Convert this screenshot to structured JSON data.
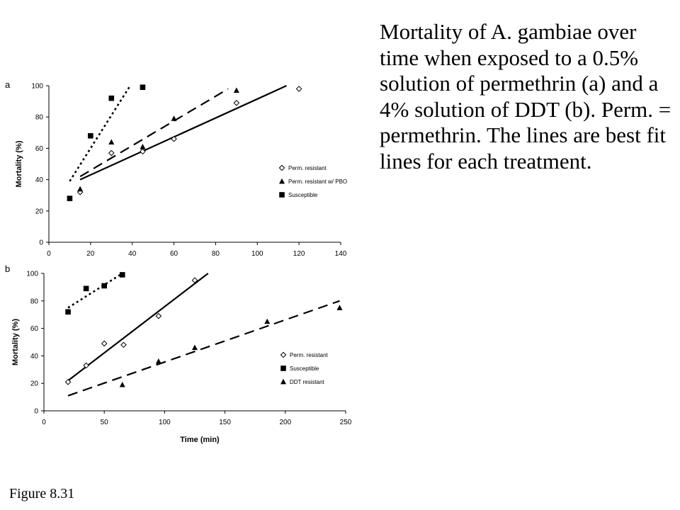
{
  "caption": "Mortality of A. gambiae over time when exposed to a 0.5% solution of permethrin (a) and a 4% solution of DDT (b).  Perm. = permethrin.  The lines are best fit lines for each treatment.",
  "figure_label": "Figure 8.31",
  "chart_data": [
    {
      "panel_label": "a",
      "type": "scatter",
      "xlabel": "",
      "ylabel": "Mortality (%)",
      "xlim": [
        0,
        140
      ],
      "ylim": [
        0,
        100
      ],
      "xticks": [
        0,
        20,
        40,
        60,
        80,
        100,
        120,
        140
      ],
      "yticks": [
        0,
        20,
        40,
        60,
        80,
        100
      ],
      "grid": false,
      "legend_position": "right",
      "series": [
        {
          "name": "Perm. resistant",
          "marker": "diamond-open",
          "line_style": "solid",
          "points": [
            [
              15,
              32
            ],
            [
              30,
              57
            ],
            [
              45,
              58
            ],
            [
              60,
              66
            ],
            [
              90,
              89
            ],
            [
              120,
              98
            ]
          ],
          "fit_line": [
            [
              15,
              40
            ],
            [
              114,
              100
            ]
          ]
        },
        {
          "name": "Perm. resistant w/ PBO",
          "marker": "triangle-filled",
          "line_style": "dashed",
          "points": [
            [
              15,
              34
            ],
            [
              30,
              64
            ],
            [
              45,
              61
            ],
            [
              60,
              79
            ],
            [
              90,
              97
            ]
          ],
          "fit_line": [
            [
              15,
              42
            ],
            [
              86,
              98
            ]
          ]
        },
        {
          "name": "Susceptible",
          "marker": "square-filled",
          "line_style": "dotted",
          "points": [
            [
              10,
              28
            ],
            [
              20,
              68
            ],
            [
              30,
              92
            ],
            [
              45,
              99
            ]
          ],
          "fit_line": [
            [
              10,
              39
            ],
            [
              39,
              100
            ]
          ]
        }
      ]
    },
    {
      "panel_label": "b",
      "type": "scatter",
      "xlabel": "Time (min)",
      "ylabel": "Mortality (%)",
      "xlim": [
        0,
        250
      ],
      "ylim": [
        0,
        100
      ],
      "xticks": [
        0,
        50,
        100,
        150,
        200,
        250
      ],
      "yticks": [
        0,
        20,
        40,
        60,
        80,
        100
      ],
      "grid": false,
      "legend_position": "right",
      "series": [
        {
          "name": "Perm. resistant",
          "marker": "diamond-open",
          "line_style": "solid",
          "points": [
            [
              20,
              21
            ],
            [
              35,
              33
            ],
            [
              50,
              49
            ],
            [
              66,
              48
            ],
            [
              95,
              69
            ],
            [
              125,
              95
            ]
          ],
          "fit_line": [
            [
              20,
              22
            ],
            [
              136,
              100
            ]
          ]
        },
        {
          "name": "Susceptible",
          "marker": "square-filled",
          "line_style": "dotted",
          "points": [
            [
              20,
              72
            ],
            [
              35,
              89
            ],
            [
              50,
              91
            ],
            [
              65,
              99
            ]
          ],
          "fit_line": [
            [
              20,
              75
            ],
            [
              65,
              100
            ]
          ]
        },
        {
          "name": "DDT resistant",
          "marker": "triangle-filled",
          "line_style": "dashed",
          "points": [
            [
              65,
              19
            ],
            [
              95,
              36
            ],
            [
              125,
              46
            ],
            [
              185,
              65
            ],
            [
              245,
              75
            ]
          ],
          "fit_line": [
            [
              20,
              11
            ],
            [
              245,
              80
            ]
          ]
        }
      ]
    }
  ]
}
